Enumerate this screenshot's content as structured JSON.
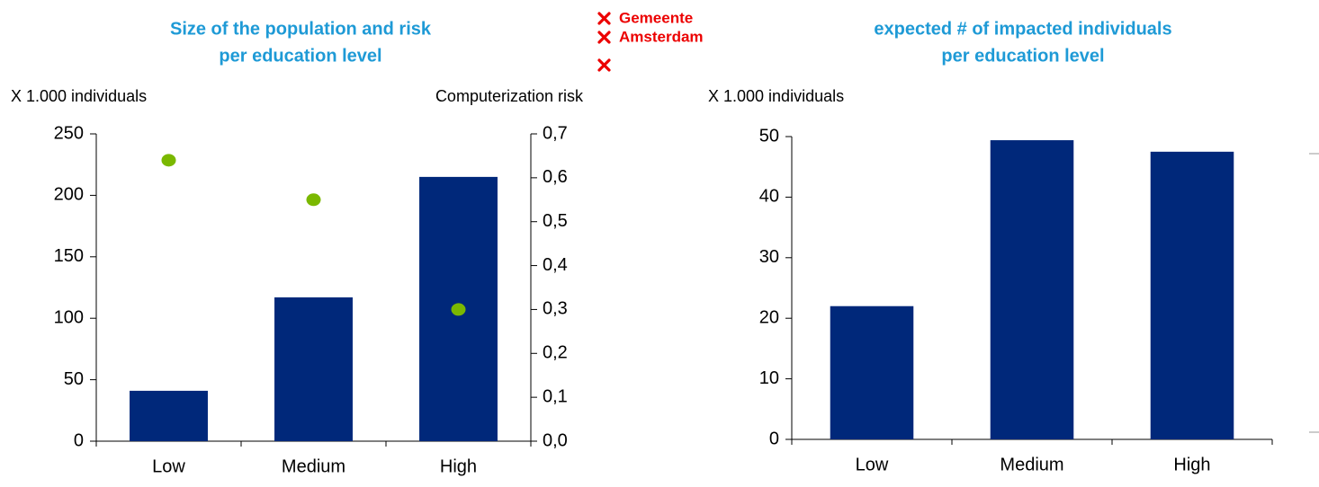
{
  "logo": [
    "Gemeente",
    "Amsterdam"
  ],
  "chart_data": [
    {
      "type": "bar",
      "title": [
        "Size of the population and risk",
        "per education level"
      ],
      "y_label": "X 1.000 individuals",
      "y2_label": "Computerization risk",
      "categories": [
        "Low",
        "Medium",
        "High"
      ],
      "series": [
        {
          "color": "#00287a",
          "values": [
            41,
            117,
            215
          ]
        },
        {
          "type": "scatter",
          "axis": "y2",
          "color": "#7ab800",
          "values": [
            0.64,
            0.55,
            0.3
          ]
        }
      ],
      "ylim": [
        0,
        250
      ],
      "yticks": [
        0,
        50,
        100,
        150,
        200,
        250
      ],
      "y2lim": [
        0,
        0.7
      ],
      "y2ticks": [
        {
          "value": 0,
          "label": "0,0"
        },
        {
          "value": 0.1,
          "label": "0,1"
        },
        {
          "value": 0.2,
          "label": "0,2"
        },
        {
          "value": 0.3,
          "label": "0,3"
        },
        {
          "value": 0.4,
          "label": "0,4"
        },
        {
          "value": 0.5,
          "label": "0,5"
        },
        {
          "value": 0.6,
          "label": "0,6"
        },
        {
          "value": 0.7,
          "label": "0,7"
        }
      ],
      "grid": false
    },
    {
      "type": "bar",
      "title": [
        "expected # of impacted individuals",
        "per education level"
      ],
      "y_label": "X 1.000 individuals",
      "categories": [
        "Low",
        "Medium",
        "High"
      ],
      "series": [
        {
          "color": "#00287a",
          "values": [
            22,
            49.4,
            47.5
          ]
        }
      ],
      "ylim": [
        0,
        50
      ],
      "yticks": [
        0,
        10,
        20,
        30,
        40,
        50
      ],
      "grid": false
    }
  ]
}
